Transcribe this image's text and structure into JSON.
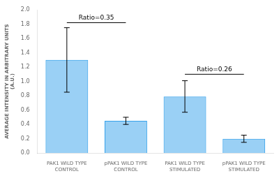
{
  "chart_data": {
    "type": "bar",
    "categories": [
      "PAK1 WILD TYPE\nCONTROL",
      "pPAK1 WILD TYPE\nCONTROL",
      "PAK1 WILD TYPE\nSTIMULATED",
      "pPAK1 WILD TYPE\nSTIMULATED"
    ],
    "values": [
      1.3,
      0.45,
      0.79,
      0.2
    ],
    "errors": [
      0.45,
      0.05,
      0.22,
      0.05
    ],
    "y_label": "AVERAGE INTENSITY IN ARBITRARY UNITS\n(A.U.)",
    "ylim": [
      0,
      2.0
    ],
    "yticks": [
      {
        "value": 0,
        "label": "0.0"
      },
      0.2,
      0.4,
      0.6,
      0.8,
      {
        "value": 1.0,
        "label": "1.0"
      },
      1.2,
      1.4,
      1.6,
      1.8,
      {
        "value": 2.0,
        "label": "2.0"
      }
    ],
    "annotations": [
      {
        "text": "Ratio=0.35",
        "from": "PAK1 WILD TYPE\nCONTROL",
        "to": "pPAK1 WILD TYPE\nCONTROL",
        "y": 1.82
      },
      {
        "text": "Ratio=0.26",
        "from": "PAK1 WILD TYPE\nSTIMULATED",
        "to": "pPAK1 WILD TYPE\nSTIMULATED",
        "y": 1.1
      }
    ],
    "grid": false
  }
}
